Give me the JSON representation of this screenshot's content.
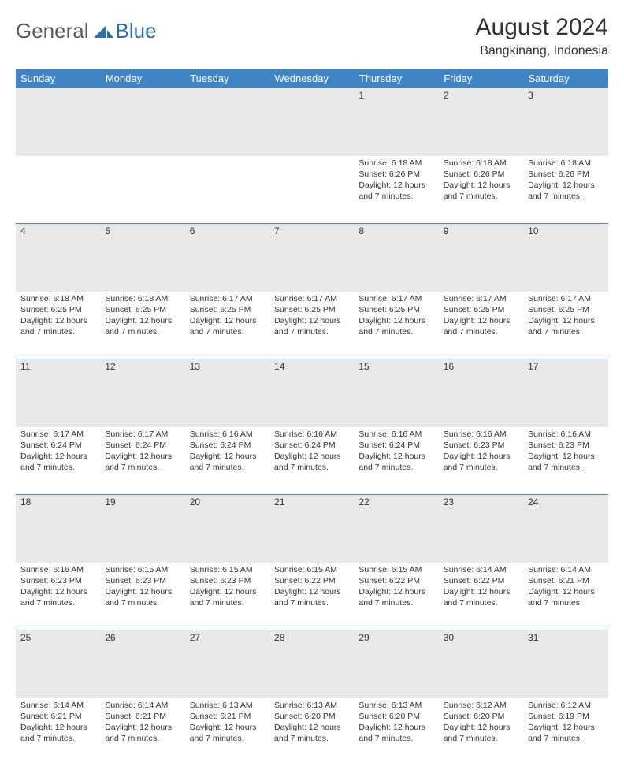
{
  "brand": {
    "part1": "General",
    "part2": "Blue"
  },
  "title": "August 2024",
  "location": "Bangkinang, Indonesia",
  "colors": {
    "header_bg": "#3f85c6",
    "header_text": "#ffffff",
    "daynum_bg": "#e8e8e8",
    "rule": "#3f85c6",
    "logo_gray": "#5a5a5a",
    "logo_blue": "#2f6fa8"
  },
  "day_labels": [
    "Sunday",
    "Monday",
    "Tuesday",
    "Wednesday",
    "Thursday",
    "Friday",
    "Saturday"
  ],
  "weeks": [
    [
      {
        "n": "",
        "sr": "",
        "ss": "",
        "dl": ""
      },
      {
        "n": "",
        "sr": "",
        "ss": "",
        "dl": ""
      },
      {
        "n": "",
        "sr": "",
        "ss": "",
        "dl": ""
      },
      {
        "n": "",
        "sr": "",
        "ss": "",
        "dl": ""
      },
      {
        "n": "1",
        "sr": "Sunrise: 6:18 AM",
        "ss": "Sunset: 6:26 PM",
        "dl": "Daylight: 12 hours and 7 minutes."
      },
      {
        "n": "2",
        "sr": "Sunrise: 6:18 AM",
        "ss": "Sunset: 6:26 PM",
        "dl": "Daylight: 12 hours and 7 minutes."
      },
      {
        "n": "3",
        "sr": "Sunrise: 6:18 AM",
        "ss": "Sunset: 6:26 PM",
        "dl": "Daylight: 12 hours and 7 minutes."
      }
    ],
    [
      {
        "n": "4",
        "sr": "Sunrise: 6:18 AM",
        "ss": "Sunset: 6:25 PM",
        "dl": "Daylight: 12 hours and 7 minutes."
      },
      {
        "n": "5",
        "sr": "Sunrise: 6:18 AM",
        "ss": "Sunset: 6:25 PM",
        "dl": "Daylight: 12 hours and 7 minutes."
      },
      {
        "n": "6",
        "sr": "Sunrise: 6:17 AM",
        "ss": "Sunset: 6:25 PM",
        "dl": "Daylight: 12 hours and 7 minutes."
      },
      {
        "n": "7",
        "sr": "Sunrise: 6:17 AM",
        "ss": "Sunset: 6:25 PM",
        "dl": "Daylight: 12 hours and 7 minutes."
      },
      {
        "n": "8",
        "sr": "Sunrise: 6:17 AM",
        "ss": "Sunset: 6:25 PM",
        "dl": "Daylight: 12 hours and 7 minutes."
      },
      {
        "n": "9",
        "sr": "Sunrise: 6:17 AM",
        "ss": "Sunset: 6:25 PM",
        "dl": "Daylight: 12 hours and 7 minutes."
      },
      {
        "n": "10",
        "sr": "Sunrise: 6:17 AM",
        "ss": "Sunset: 6:25 PM",
        "dl": "Daylight: 12 hours and 7 minutes."
      }
    ],
    [
      {
        "n": "11",
        "sr": "Sunrise: 6:17 AM",
        "ss": "Sunset: 6:24 PM",
        "dl": "Daylight: 12 hours and 7 minutes."
      },
      {
        "n": "12",
        "sr": "Sunrise: 6:17 AM",
        "ss": "Sunset: 6:24 PM",
        "dl": "Daylight: 12 hours and 7 minutes."
      },
      {
        "n": "13",
        "sr": "Sunrise: 6:16 AM",
        "ss": "Sunset: 6:24 PM",
        "dl": "Daylight: 12 hours and 7 minutes."
      },
      {
        "n": "14",
        "sr": "Sunrise: 6:16 AM",
        "ss": "Sunset: 6:24 PM",
        "dl": "Daylight: 12 hours and 7 minutes."
      },
      {
        "n": "15",
        "sr": "Sunrise: 6:16 AM",
        "ss": "Sunset: 6:24 PM",
        "dl": "Daylight: 12 hours and 7 minutes."
      },
      {
        "n": "16",
        "sr": "Sunrise: 6:16 AM",
        "ss": "Sunset: 6:23 PM",
        "dl": "Daylight: 12 hours and 7 minutes."
      },
      {
        "n": "17",
        "sr": "Sunrise: 6:16 AM",
        "ss": "Sunset: 6:23 PM",
        "dl": "Daylight: 12 hours and 7 minutes."
      }
    ],
    [
      {
        "n": "18",
        "sr": "Sunrise: 6:16 AM",
        "ss": "Sunset: 6:23 PM",
        "dl": "Daylight: 12 hours and 7 minutes."
      },
      {
        "n": "19",
        "sr": "Sunrise: 6:15 AM",
        "ss": "Sunset: 6:23 PM",
        "dl": "Daylight: 12 hours and 7 minutes."
      },
      {
        "n": "20",
        "sr": "Sunrise: 6:15 AM",
        "ss": "Sunset: 6:23 PM",
        "dl": "Daylight: 12 hours and 7 minutes."
      },
      {
        "n": "21",
        "sr": "Sunrise: 6:15 AM",
        "ss": "Sunset: 6:22 PM",
        "dl": "Daylight: 12 hours and 7 minutes."
      },
      {
        "n": "22",
        "sr": "Sunrise: 6:15 AM",
        "ss": "Sunset: 6:22 PM",
        "dl": "Daylight: 12 hours and 7 minutes."
      },
      {
        "n": "23",
        "sr": "Sunrise: 6:14 AM",
        "ss": "Sunset: 6:22 PM",
        "dl": "Daylight: 12 hours and 7 minutes."
      },
      {
        "n": "24",
        "sr": "Sunrise: 6:14 AM",
        "ss": "Sunset: 6:21 PM",
        "dl": "Daylight: 12 hours and 7 minutes."
      }
    ],
    [
      {
        "n": "25",
        "sr": "Sunrise: 6:14 AM",
        "ss": "Sunset: 6:21 PM",
        "dl": "Daylight: 12 hours and 7 minutes."
      },
      {
        "n": "26",
        "sr": "Sunrise: 6:14 AM",
        "ss": "Sunset: 6:21 PM",
        "dl": "Daylight: 12 hours and 7 minutes."
      },
      {
        "n": "27",
        "sr": "Sunrise: 6:13 AM",
        "ss": "Sunset: 6:21 PM",
        "dl": "Daylight: 12 hours and 7 minutes."
      },
      {
        "n": "28",
        "sr": "Sunrise: 6:13 AM",
        "ss": "Sunset: 6:20 PM",
        "dl": "Daylight: 12 hours and 7 minutes."
      },
      {
        "n": "29",
        "sr": "Sunrise: 6:13 AM",
        "ss": "Sunset: 6:20 PM",
        "dl": "Daylight: 12 hours and 7 minutes."
      },
      {
        "n": "30",
        "sr": "Sunrise: 6:12 AM",
        "ss": "Sunset: 6:20 PM",
        "dl": "Daylight: 12 hours and 7 minutes."
      },
      {
        "n": "31",
        "sr": "Sunrise: 6:12 AM",
        "ss": "Sunset: 6:19 PM",
        "dl": "Daylight: 12 hours and 7 minutes."
      }
    ]
  ]
}
